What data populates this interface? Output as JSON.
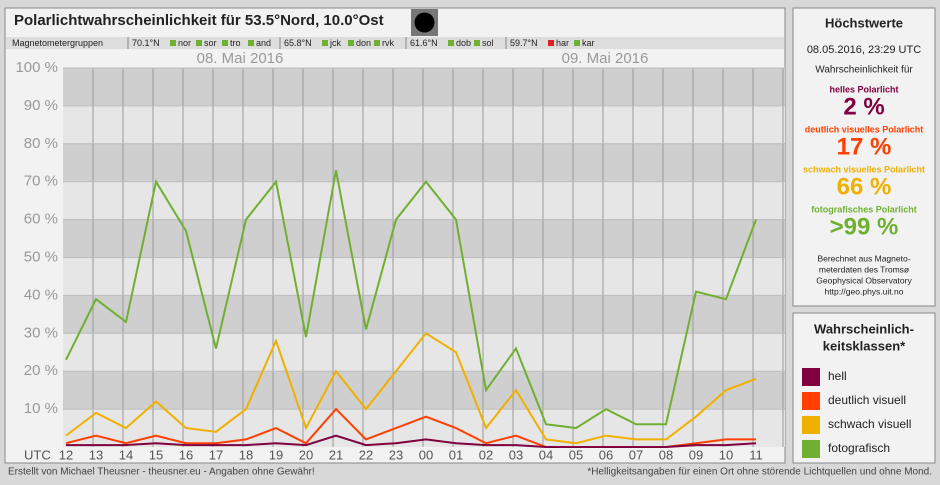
{
  "chart_data": {
    "type": "line",
    "title": "Polarlichtwahrscheinlichkeit für 53.5°Nord, 10.0°Ost",
    "magnetometer": {
      "label": "Magnetometergruppen",
      "groups": [
        {
          "lat": "70.1°N",
          "stations": [
            {
              "name": "nor",
              "color": "#70b030"
            },
            {
              "name": "sor",
              "color": "#70b030"
            },
            {
              "name": "tro",
              "color": "#70b030"
            },
            {
              "name": "and",
              "color": "#70b030"
            }
          ]
        },
        {
          "lat": "65.8°N",
          "stations": [
            {
              "name": "jck",
              "color": "#70b030"
            },
            {
              "name": "don",
              "color": "#70b030"
            },
            {
              "name": "rvk",
              "color": "#70b030"
            }
          ]
        },
        {
          "lat": "61.6°N",
          "stations": [
            {
              "name": "dob",
              "color": "#70b030"
            },
            {
              "name": "sol",
              "color": "#70b030"
            }
          ]
        },
        {
          "lat": "59.7°N",
          "stations": [
            {
              "name": "har",
              "color": "#e02020"
            },
            {
              "name": "kar",
              "color": "#70b030"
            }
          ]
        }
      ]
    },
    "dates": [
      "08. Mai 2016",
      "09. Mai 2016"
    ],
    "x_axis_label": "UTC",
    "categories": [
      "12",
      "13",
      "14",
      "15",
      "16",
      "17",
      "18",
      "19",
      "20",
      "21",
      "22",
      "23",
      "00",
      "01",
      "02",
      "03",
      "04",
      "05",
      "06",
      "07",
      "08",
      "09",
      "10",
      "11"
    ],
    "series": [
      {
        "name": "fotografisch",
        "color": "#70b030",
        "values": [
          23,
          39,
          33,
          70,
          57,
          26,
          60,
          70,
          29,
          73,
          31,
          60,
          70,
          60,
          15,
          26,
          6,
          5,
          10,
          6,
          6,
          41,
          39,
          60
        ]
      },
      {
        "name": "schwach visuell",
        "color": "#f0b000",
        "values": [
          3,
          9,
          5,
          12,
          5,
          4,
          10,
          28,
          5,
          20,
          10,
          20,
          30,
          25,
          5,
          15,
          2,
          1,
          3,
          2,
          2,
          8,
          15,
          18
        ]
      },
      {
        "name": "deutlich visuell",
        "color": "#ff4000",
        "values": [
          1,
          3,
          1,
          3,
          1,
          1,
          2,
          5,
          1,
          10,
          2,
          5,
          8,
          5,
          1,
          3,
          0,
          0,
          0,
          0,
          0,
          1,
          2,
          2
        ]
      },
      {
        "name": "hell",
        "color": "#800040",
        "values": [
          0.5,
          0.5,
          0.5,
          1,
          0.5,
          0.5,
          0.5,
          1,
          0.5,
          3,
          0.5,
          1,
          2,
          1,
          0.5,
          0.5,
          0,
          0,
          0,
          0,
          0,
          0.5,
          0.5,
          1
        ]
      }
    ],
    "ylim": [
      0,
      100
    ],
    "yticks": [
      {
        "value": 10,
        "label": "10 %"
      },
      {
        "value": 20,
        "label": "20 %"
      },
      {
        "value": 30,
        "label": "30 %"
      },
      {
        "value": 40,
        "label": "40 %"
      },
      {
        "value": 50,
        "label": "50 %"
      },
      {
        "value": 60,
        "label": "60 %"
      },
      {
        "value": 70,
        "label": "70 %"
      },
      {
        "value": 80,
        "label": "80 %"
      },
      {
        "value": 90,
        "label": "90 %"
      },
      {
        "value": 100,
        "label": "100 %"
      }
    ],
    "grid": true,
    "maxima": {
      "title": "Höchstwerte",
      "time": "08.05.2016, 23:29 UTC",
      "intro": "Wahrscheinlichkeit für",
      "items": [
        {
          "label": "helles Polarlicht",
          "value": "2 %",
          "color": "#800040"
        },
        {
          "label": "deutlich visuelles Polarlicht",
          "value": "17 %",
          "color": "#ff4000"
        },
        {
          "label": "schwach visuelles Polarlicht",
          "value": "66 %",
          "color": "#f0b000"
        },
        {
          "label": "fotografisches Polarlicht",
          "value": ">99 %",
          "color": "#70b030"
        }
      ],
      "source": [
        "Berechnet aus Magneto-",
        "meterdaten des Tromsø",
        "Geophysical Observatory",
        "http://geo.phys.uit.no"
      ]
    },
    "legend_title": [
      "Wahrscheinlich-",
      "keitsklassen*"
    ],
    "footer_left": "Erstellt von Michael Theusner - theusner.eu - Angaben ohne Gewähr!",
    "footer_right": "*Helligkeitsangaben für einen Ort ohne störende Lichtquellen und ohne Mond."
  }
}
